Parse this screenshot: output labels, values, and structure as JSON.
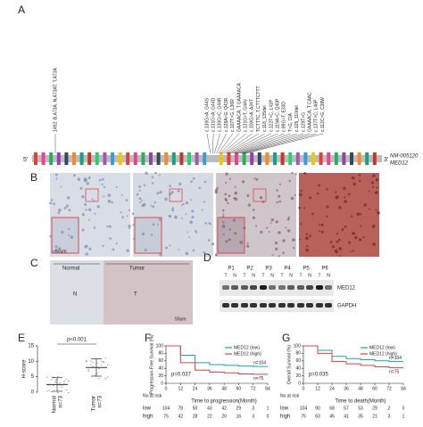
{
  "figure": {
    "panels": [
      "A",
      "B",
      "C",
      "D",
      "E",
      "F",
      "G"
    ],
    "gene": {
      "five": "5'",
      "three": "3'",
      "accession": "NM-005120",
      "name": "MED12"
    },
    "mutations": [
      "1492: B,A73A, N,A73AT, T,A73A",
      "c.130G>A, G44S",
      "c.131G>A, G44D",
      "c.130G>C, G44R",
      "c.128A>G, Q43R",
      "c.107T>G, L36R",
      "GAAAACA, T.GAAAACA",
      "c.131G>T, G44V",
      "c.100G>A, A34T",
      "TCTTTC, T.CTTTCTTT",
      "c.118_135del",
      "c.122T>C, L41P",
      "c.119A>C, Q40P",
      "c.99G>T, E33D",
      "T>G, CIA",
      "c.105_110del",
      "c.129T>G",
      "GAAAACA, T.CAAC",
      "c.137T>C, L46P",
      "c.112C>G, C38W"
    ],
    "scale_bar": "50um",
    "c_labels": {
      "normal": "Normal",
      "tumor": "Tumor",
      "n": "N",
      "t": "T",
      "scale": "50um"
    },
    "blot": {
      "patients": [
        "P1",
        "P2",
        "P3",
        "P4",
        "P5",
        "P6"
      ],
      "lanes": [
        "T",
        "N"
      ],
      "proteins": [
        "MED12",
        "GAPDH"
      ]
    }
  },
  "chart_data": [
    {
      "type": "errorbar",
      "categories": [
        "Normal",
        "Tumor"
      ],
      "n_labels": [
        "n=73",
        "n=73"
      ],
      "values": [
        2.5,
        8
      ],
      "errors": [
        2.2,
        2.8
      ],
      "ylim": [
        0,
        15
      ],
      "yticks": [
        0,
        5,
        10,
        15
      ],
      "ylabel": "H-score",
      "annotation": "p<0.001",
      "color": "#333333"
    },
    {
      "type": "line",
      "x": [
        0,
        12,
        24,
        36,
        48,
        60,
        72,
        84
      ],
      "xlim": [
        0,
        84
      ],
      "xticks": [
        0,
        12,
        24,
        36,
        48,
        60,
        72,
        84
      ],
      "ylim": [
        0,
        100
      ],
      "yticks": [
        0,
        20,
        40,
        60,
        80,
        100
      ],
      "xlabel": "Time to progression(Month)",
      "ylabel": "Progression-Free Survival (%)",
      "annotation": "p=0.037",
      "series": [
        {
          "name": "MED12 (low)",
          "color": "#1aa3b8",
          "values": [
            100,
            75,
            55,
            50,
            48,
            46,
            45,
            45
          ],
          "n": "n=104"
        },
        {
          "name": "MED12 (high)",
          "color": "#e0413c",
          "values": [
            100,
            55,
            35,
            30,
            28,
            25,
            24,
            24
          ],
          "n": "n=75"
        }
      ],
      "risk_title": "No.at risk",
      "risk_rows": [
        {
          "label": "low",
          "counts": [
            104,
            78,
            50,
            43,
            42,
            29,
            3,
            1
          ]
        },
        {
          "label": "high",
          "counts": [
            75,
            42,
            28,
            22,
            20,
            16,
            3,
            0
          ]
        }
      ]
    },
    {
      "type": "line",
      "x": [
        0,
        12,
        24,
        36,
        48,
        60,
        72,
        84
      ],
      "xlim": [
        0,
        84
      ],
      "xticks": [
        0,
        12,
        24,
        36,
        48,
        60,
        72,
        84
      ],
      "ylim": [
        0,
        100
      ],
      "yticks": [
        0,
        20,
        40,
        60,
        80,
        100
      ],
      "xlabel": "Time to death(Month)",
      "ylabel": "Overall Survival (%)",
      "annotation": "p=0.035",
      "series": [
        {
          "name": "MED12 (low)",
          "color": "#1aa3b8",
          "values": [
            100,
            88,
            72,
            66,
            63,
            60,
            58,
            58
          ],
          "n": "n=104"
        },
        {
          "name": "MED12 (high)",
          "color": "#e0413c",
          "values": [
            100,
            80,
            58,
            52,
            48,
            44,
            42,
            42
          ],
          "n": "n=75"
        }
      ],
      "risk_title": "No.at risk",
      "risk_rows": [
        {
          "label": "low",
          "counts": [
            104,
            90,
            68,
            57,
            53,
            29,
            2,
            0
          ]
        },
        {
          "label": "high",
          "counts": [
            75,
            63,
            45,
            41,
            35,
            21,
            3,
            1
          ]
        }
      ]
    }
  ]
}
